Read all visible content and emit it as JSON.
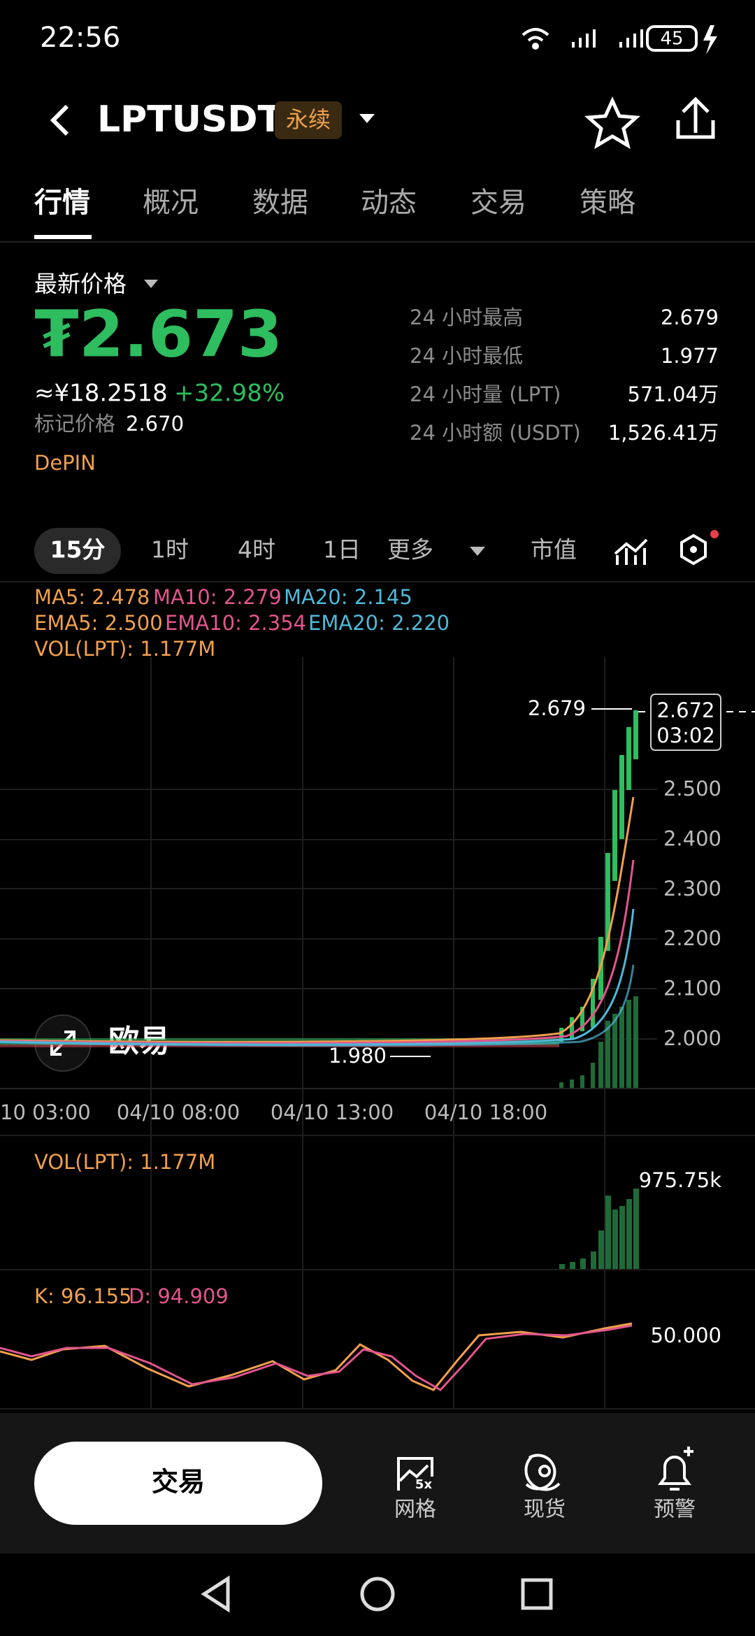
{
  "status_bar": {
    "time": "22:56",
    "battery": "45"
  },
  "header": {
    "symbol": "LPTUSDT",
    "tag": "永续"
  },
  "tabs": [
    "行情",
    "概况",
    "数据",
    "动态",
    "交易",
    "策略"
  ],
  "price": {
    "label": "最新价格",
    "last": "₮2.673",
    "cny": "≈¥18.2518",
    "change": "+32.98%",
    "mark_label": "标记价格",
    "mark": "2.670",
    "sector": "DePIN"
  },
  "stats": [
    {
      "label": "24 小时最高",
      "value": "2.679"
    },
    {
      "label": "24 小时最低",
      "value": "1.977"
    },
    {
      "label": "24 小时量 (LPT)",
      "value": "571.04万"
    },
    {
      "label": "24 小时额 (USDT)",
      "value": "1,526.41万"
    }
  ],
  "intervals": [
    "15分",
    "1时",
    "4时",
    "1日",
    "更多",
    "市值"
  ],
  "indicators": {
    "ma": [
      "MA5: 2.478",
      "MA10: 2.279",
      "MA20: 2.145"
    ],
    "ema": [
      "EMA5: 2.500",
      "EMA10: 2.354",
      "EMA20: 2.220"
    ],
    "vol": "VOL(LPT): 1.177M"
  },
  "chart": {
    "price_ticks": [
      "2.500",
      "2.400",
      "2.300",
      "2.200",
      "2.100",
      "2.000"
    ],
    "high": "2.679",
    "low": "1.980",
    "current": "2.672",
    "countdown": "03:02",
    "watermark": "欧易",
    "time_labels": [
      "10 03:00",
      "04/10 08:00",
      "04/10 13:00",
      "04/10 18:00"
    ]
  },
  "volume": {
    "label": "VOL(LPT): 1.177M",
    "tick": "975.75k"
  },
  "kd": {
    "k": "K: 96.155",
    "d": "D: 94.909",
    "tick": "50.000"
  },
  "bottom": {
    "trade": "交易",
    "grid_badge": "5x",
    "actions": [
      "网格",
      "现货",
      "预警"
    ]
  }
}
